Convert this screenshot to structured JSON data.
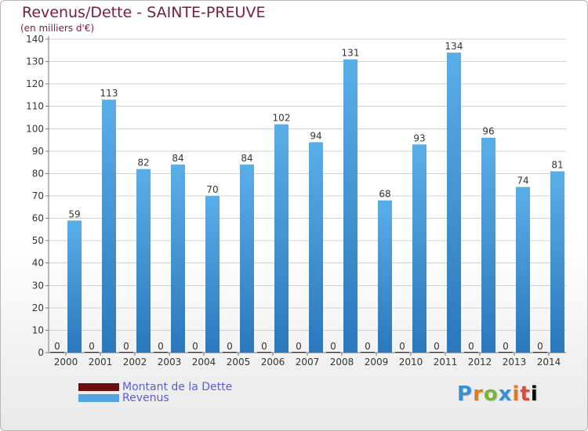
{
  "title": "Revenus/Dette - SAINTE-PREUVE",
  "subtitle": "(en milliers d'€)",
  "logo_text": "Proxiti",
  "colors": {
    "dette": "#6b0f0f",
    "revenus": "#4fa3e0",
    "revenus_dark": "#2f7fc4",
    "title": "#7a1c3c",
    "legend_text": "#5b5bdc",
    "grid": "#d0d0d0"
  },
  "chart_data": {
    "type": "bar",
    "categories": [
      "2000",
      "2001",
      "2002",
      "2003",
      "2004",
      "2005",
      "2006",
      "2007",
      "2008",
      "2009",
      "2010",
      "2011",
      "2012",
      "2013",
      "2014"
    ],
    "series": [
      {
        "name": "Montant de la Dette",
        "values": [
          0,
          0,
          0,
          0,
          0,
          0,
          0,
          0,
          0,
          0,
          0,
          0,
          0,
          0,
          0
        ]
      },
      {
        "name": "Revenus",
        "values": [
          59,
          113,
          82,
          84,
          70,
          84,
          102,
          94,
          131,
          68,
          93,
          134,
          96,
          74,
          81
        ]
      }
    ],
    "ylim": [
      0,
      140
    ],
    "yticks": [
      0,
      10,
      20,
      30,
      40,
      50,
      60,
      70,
      80,
      90,
      100,
      110,
      120,
      130,
      140
    ],
    "grid": true,
    "legend_position": "bottom-left"
  }
}
